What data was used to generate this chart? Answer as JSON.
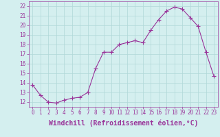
{
  "x": [
    0,
    1,
    2,
    3,
    4,
    5,
    6,
    7,
    8,
    9,
    10,
    11,
    12,
    13,
    14,
    15,
    16,
    17,
    18,
    19,
    20,
    21,
    22,
    23
  ],
  "y": [
    13.8,
    12.7,
    12.0,
    11.9,
    12.2,
    12.4,
    12.5,
    13.0,
    15.5,
    17.2,
    17.2,
    18.0,
    18.2,
    18.4,
    18.2,
    19.5,
    20.6,
    21.5,
    21.9,
    21.7,
    20.8,
    19.9,
    17.2,
    14.7
  ],
  "line_color": "#993399",
  "marker": "+",
  "marker_size": 4,
  "bg_color": "#d4efef",
  "grid_color": "#b0d8d8",
  "xlabel": "Windchill (Refroidissement éolien,°C)",
  "xlabel_fontsize": 7,
  "xtick_fontsize": 5.5,
  "ytick_fontsize": 5.5,
  "ylim": [
    11.5,
    22.5
  ],
  "xlim": [
    -0.5,
    23.5
  ],
  "yticks": [
    12,
    13,
    14,
    15,
    16,
    17,
    18,
    19,
    20,
    21,
    22
  ],
  "xticks": [
    0,
    1,
    2,
    3,
    4,
    5,
    6,
    7,
    8,
    9,
    10,
    11,
    12,
    13,
    14,
    15,
    16,
    17,
    18,
    19,
    20,
    21,
    22,
    23
  ]
}
